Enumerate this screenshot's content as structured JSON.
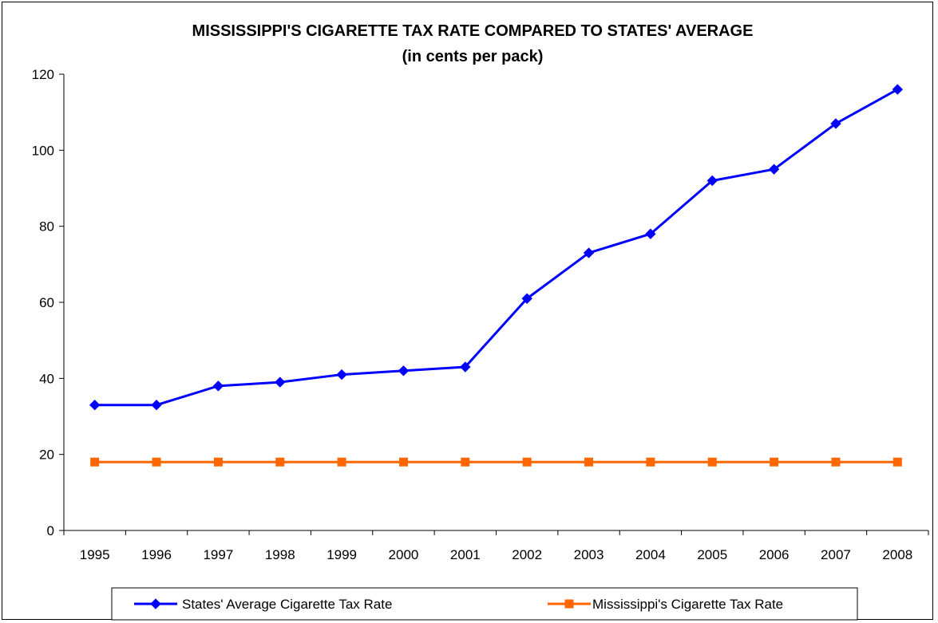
{
  "chart_data": {
    "type": "line",
    "title": "MISSISSIPPI'S CIGARETTE TAX RATE COMPARED TO STATES' AVERAGE",
    "subtitle": "(in cents per pack)",
    "xlabel": "",
    "ylabel": "",
    "x": [
      "1995",
      "1996",
      "1997",
      "1998",
      "1999",
      "2000",
      "2001",
      "2002",
      "2003",
      "2004",
      "2005",
      "2006",
      "2007",
      "2008"
    ],
    "ylim": [
      0,
      120
    ],
    "yticks": [
      "0",
      "20",
      "40",
      "60",
      "80",
      "100",
      "120"
    ],
    "grid": false,
    "legend_position": "bottom",
    "series": [
      {
        "name": "States' Average Cigarette Tax Rate",
        "color": "#0000ff",
        "marker": "diamond",
        "values": [
          33,
          33,
          38,
          39,
          41,
          42,
          43,
          61,
          73,
          78,
          92,
          95,
          107,
          116
        ]
      },
      {
        "name": "Mississippi's Cigarette Tax Rate",
        "color": "#ff6600",
        "marker": "square",
        "values": [
          18,
          18,
          18,
          18,
          18,
          18,
          18,
          18,
          18,
          18,
          18,
          18,
          18,
          18
        ]
      }
    ]
  }
}
